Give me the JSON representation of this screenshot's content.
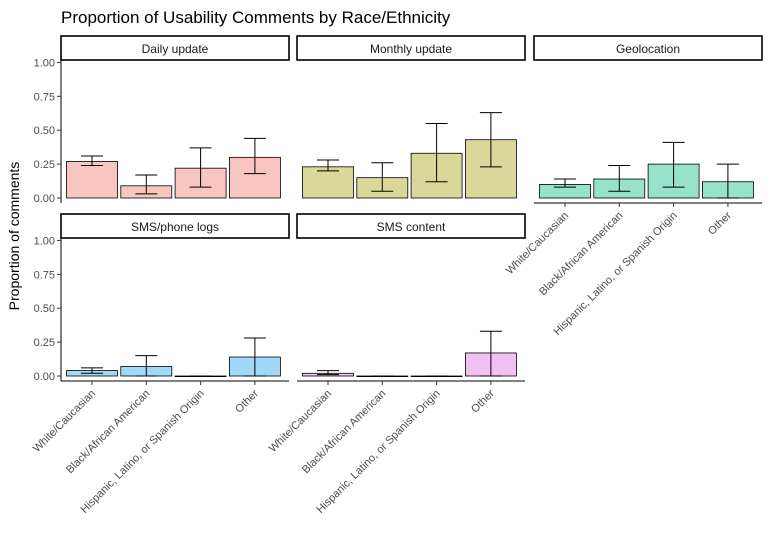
{
  "chart_data": {
    "type": "bar",
    "title": "Proportion of Usability Comments by Race/Ethnicity",
    "xlabel": "",
    "ylabel": "Proportion of comments",
    "ylim": [
      0,
      1.25
    ],
    "y_ticks": [
      "0.00",
      "0.25",
      "0.50",
      "0.75",
      "1.00"
    ],
    "categories": [
      "White/Caucasian",
      "Black/African American",
      "Hispanic, Latino, or Spanish Origin",
      "Other"
    ],
    "grid": false,
    "legend": "none",
    "panels": [
      {
        "name": "Daily update",
        "color": "#F8C5C1",
        "values": [
          0.27,
          0.09,
          0.22,
          0.3
        ],
        "err_low": [
          0.24,
          0.03,
          0.08,
          0.18
        ],
        "err_high": [
          0.31,
          0.17,
          0.37,
          0.44
        ]
      },
      {
        "name": "Monthly update",
        "color": "#D9D89A",
        "values": [
          0.23,
          0.15,
          0.33,
          0.43
        ],
        "err_low": [
          0.2,
          0.05,
          0.12,
          0.23
        ],
        "err_high": [
          0.28,
          0.26,
          0.55,
          0.63
        ]
      },
      {
        "name": "Geolocation",
        "color": "#98E2CC",
        "values": [
          0.1,
          0.14,
          0.25,
          0.12
        ],
        "err_low": [
          0.08,
          0.05,
          0.08,
          0.0
        ],
        "err_high": [
          0.14,
          0.24,
          0.41,
          0.25
        ]
      },
      {
        "name": "SMS/phone logs",
        "color": "#9FD9F7",
        "values": [
          0.04,
          0.07,
          0.0,
          0.14
        ],
        "err_low": [
          0.02,
          0.0,
          0.0,
          0.0
        ],
        "err_high": [
          0.06,
          0.15,
          0.0,
          0.28
        ]
      },
      {
        "name": "SMS content",
        "color": "#F2C0F3",
        "values": [
          0.02,
          0.0,
          0.0,
          0.17
        ],
        "err_low": [
          0.01,
          0.0,
          0.0,
          0.0
        ],
        "err_high": [
          0.04,
          0.0,
          0.0,
          0.33
        ]
      }
    ]
  }
}
